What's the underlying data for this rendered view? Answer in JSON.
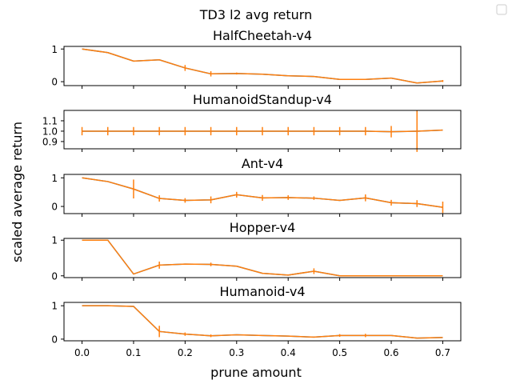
{
  "figure": {
    "suptitle": "TD3 l2 avg return",
    "xlabel": "prune amount",
    "ylabel": "scaled average return"
  },
  "legend": {
    "placement": "top-right",
    "entries": []
  },
  "colors": {
    "line": "#ff7f0e",
    "line_under": "#1f77b4",
    "axis": "#000000"
  },
  "chart_data": [
    {
      "type": "line",
      "title": "HalfCheetah-v4",
      "x": [
        0.0,
        0.05,
        0.1,
        0.15,
        0.2,
        0.25,
        0.3,
        0.35,
        0.4,
        0.45,
        0.5,
        0.55,
        0.6,
        0.65,
        0.7
      ],
      "series": [
        {
          "values": [
            1.0,
            0.89,
            0.63,
            0.67,
            0.42,
            0.24,
            0.25,
            0.23,
            0.18,
            0.16,
            0.07,
            0.07,
            0.11,
            -0.04,
            0.02
          ]
        }
      ],
      "errors": [
        0.0,
        0.0,
        0.0,
        0.0,
        0.09,
        0.08,
        0.03,
        0.0,
        0.0,
        0.0,
        0.0,
        0.0,
        0.0,
        0.0,
        0.03
      ],
      "yticks": [
        "0",
        "1"
      ],
      "ylim": [
        -0.12,
        1.08
      ],
      "xlim": [
        -0.035,
        0.735
      ]
    },
    {
      "type": "line",
      "title": "HumanoidStandup-v4",
      "x": [
        0.0,
        0.05,
        0.1,
        0.15,
        0.2,
        0.25,
        0.3,
        0.35,
        0.4,
        0.45,
        0.5,
        0.55,
        0.6,
        0.65,
        0.7
      ],
      "series": [
        {
          "values": [
            1.0,
            1.0,
            1.0,
            1.0,
            1.0,
            1.0,
            1.0,
            1.0,
            1.0,
            1.0,
            1.0,
            1.0,
            0.995,
            1.0,
            1.01
          ]
        }
      ],
      "errors": [
        0.04,
        0.04,
        0.04,
        0.04,
        0.04,
        0.04,
        0.04,
        0.04,
        0.04,
        0.04,
        0.04,
        0.04,
        0.055,
        0.2,
        0.0
      ],
      "yticks": [
        "0.9",
        "1.0",
        "1.1"
      ],
      "ylim": [
        0.83,
        1.2
      ],
      "xlim": [
        -0.035,
        0.735
      ]
    },
    {
      "type": "line",
      "title": "Ant-v4",
      "x": [
        0.0,
        0.05,
        0.1,
        0.15,
        0.2,
        0.25,
        0.3,
        0.35,
        0.4,
        0.45,
        0.5,
        0.55,
        0.6,
        0.65,
        0.7
      ],
      "series": [
        {
          "values": [
            1.0,
            0.87,
            0.61,
            0.28,
            0.21,
            0.23,
            0.41,
            0.3,
            0.31,
            0.29,
            0.21,
            0.3,
            0.13,
            0.1,
            -0.03
          ]
        }
      ],
      "errors": [
        0.0,
        0.0,
        0.33,
        0.11,
        0.08,
        0.12,
        0.1,
        0.1,
        0.08,
        0.06,
        0.0,
        0.12,
        0.1,
        0.12,
        0.2
      ],
      "yticks": [
        "0",
        "1"
      ],
      "ylim": [
        -0.25,
        1.12
      ],
      "xlim": [
        -0.035,
        0.735
      ]
    },
    {
      "type": "line",
      "title": "Hopper-v4",
      "x": [
        0.0,
        0.05,
        0.1,
        0.15,
        0.2,
        0.25,
        0.3,
        0.35,
        0.4,
        0.45,
        0.5,
        0.55,
        0.6,
        0.65,
        0.7
      ],
      "series": [
        {
          "values": [
            1.0,
            1.0,
            0.05,
            0.3,
            0.33,
            0.32,
            0.27,
            0.07,
            0.02,
            0.13,
            0.0,
            0.0,
            0.0,
            0.0,
            0.0
          ]
        }
      ],
      "errors": [
        0.0,
        0.0,
        0.0,
        0.1,
        0.0,
        0.05,
        0.0,
        0.0,
        0.0,
        0.08,
        0.0,
        0.0,
        0.0,
        0.0,
        0.0
      ],
      "yticks": [
        "0",
        "1"
      ],
      "ylim": [
        -0.05,
        1.05
      ],
      "xlim": [
        -0.035,
        0.735
      ]
    },
    {
      "type": "line",
      "title": "Humanoid-v4",
      "x": [
        0.0,
        0.05,
        0.1,
        0.15,
        0.2,
        0.25,
        0.3,
        0.35,
        0.4,
        0.45,
        0.5,
        0.55,
        0.6,
        0.65,
        0.7
      ],
      "series": [
        {
          "values": [
            1.0,
            1.0,
            0.98,
            0.23,
            0.15,
            0.1,
            0.13,
            0.11,
            0.09,
            0.06,
            0.11,
            0.11,
            0.11,
            0.03,
            0.05
          ]
        }
      ],
      "errors": [
        0.0,
        0.0,
        0.0,
        0.17,
        0.05,
        0.04,
        0.0,
        0.0,
        0.0,
        0.0,
        0.04,
        0.05,
        0.0,
        0.0,
        0.0
      ],
      "yticks": [
        "0",
        "1"
      ],
      "ylim": [
        -0.05,
        1.1
      ],
      "xlim": [
        -0.035,
        0.735
      ]
    }
  ],
  "xticks": [
    "0.0",
    "0.1",
    "0.2",
    "0.3",
    "0.4",
    "0.5",
    "0.6",
    "0.7"
  ]
}
